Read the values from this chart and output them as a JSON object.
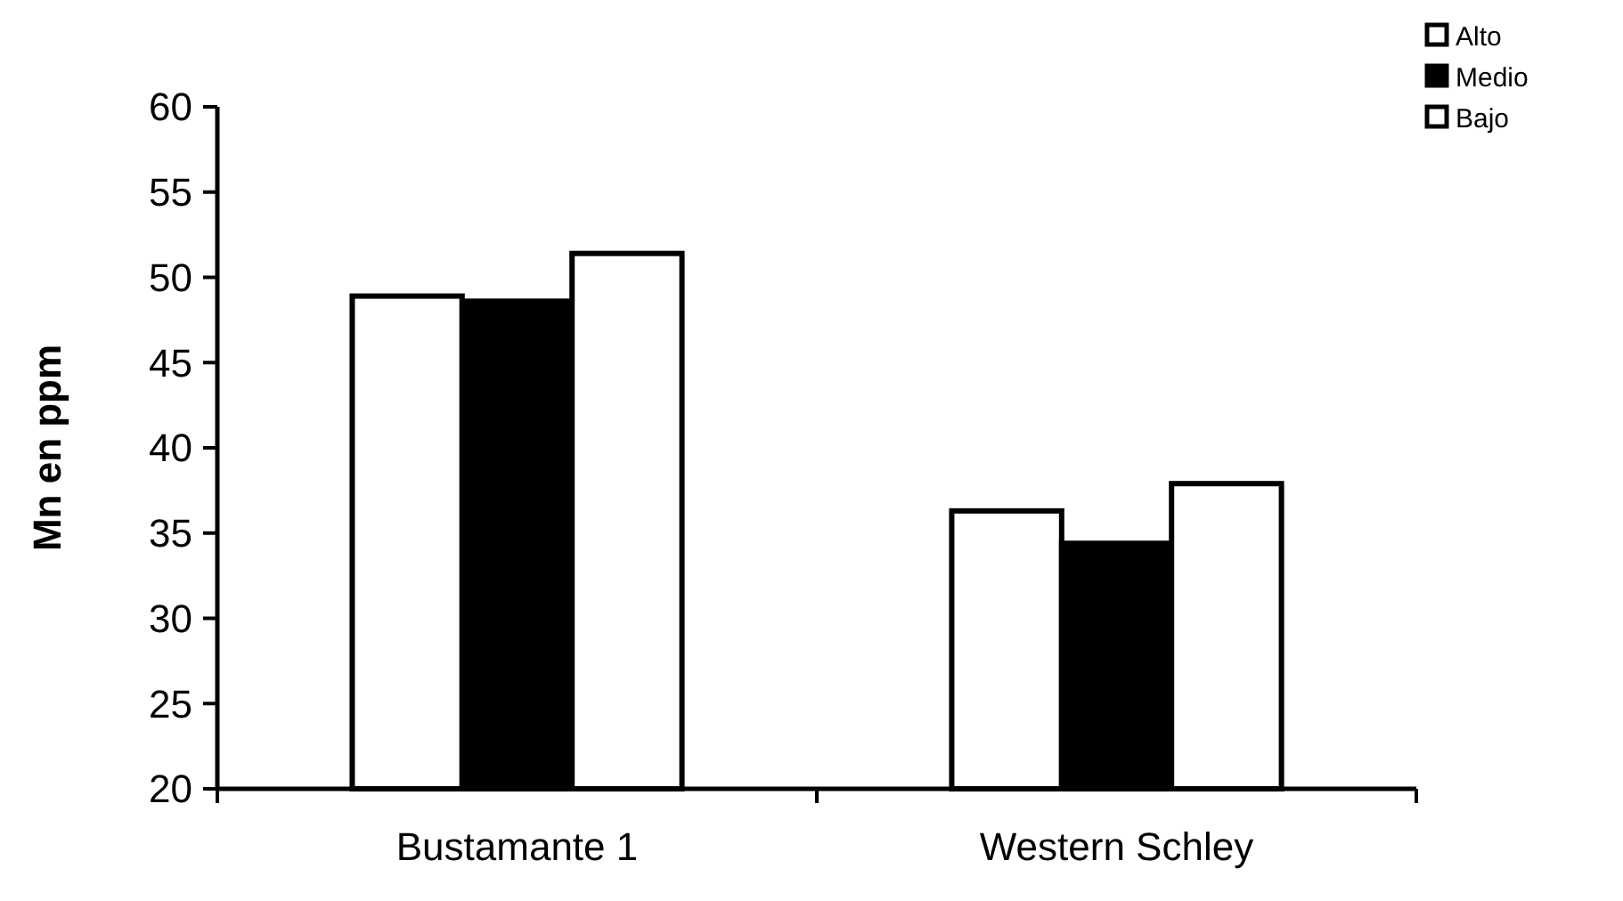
{
  "chart_data": {
    "type": "bar",
    "ylabel": "Mn en ppm",
    "categories": [
      "Bustamante 1",
      "Western Schley"
    ],
    "series": [
      {
        "name": "Alto",
        "color": "#ffffff",
        "values": [
          48.9,
          36.3
        ]
      },
      {
        "name": "Medio",
        "color": "#000000",
        "values": [
          48.6,
          34.4
        ]
      },
      {
        "name": "Bajo",
        "color": "#ffffff",
        "values": [
          51.4,
          37.9
        ]
      }
    ],
    "ylim": [
      20,
      60
    ],
    "yticks": [
      20,
      25,
      30,
      35,
      40,
      45,
      50,
      55,
      60
    ],
    "grid": false,
    "legend": "top right"
  }
}
